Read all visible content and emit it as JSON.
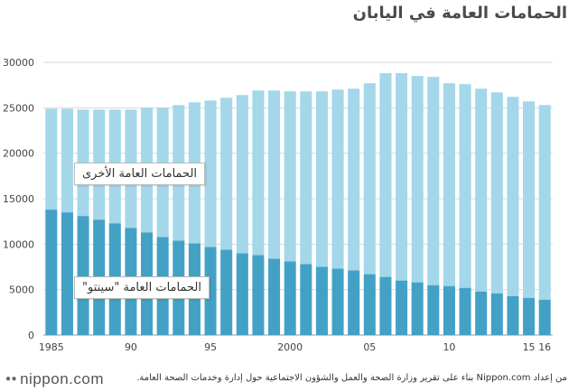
{
  "title": "الحمامات العامة في اليابان",
  "chart_data": {
    "type": "bar",
    "stacked": true,
    "categories": [
      1985,
      1986,
      1987,
      1988,
      1989,
      1990,
      1991,
      1992,
      1993,
      1994,
      1995,
      1996,
      1997,
      1998,
      1999,
      2000,
      2001,
      2002,
      2003,
      2004,
      2005,
      2006,
      2007,
      2008,
      2009,
      2010,
      2011,
      2012,
      2013,
      2014,
      2015,
      2016
    ],
    "series": [
      {
        "name": "الحمامات العامة \"سينتو\"",
        "color": "#44a1c6",
        "values": [
          13800,
          13500,
          13100,
          12700,
          12300,
          11800,
          11300,
          10800,
          10400,
          10100,
          9700,
          9400,
          9000,
          8800,
          8400,
          8100,
          7800,
          7500,
          7300,
          7100,
          6700,
          6400,
          6000,
          5800,
          5500,
          5400,
          5200,
          4800,
          4600,
          4300,
          4100,
          3900
        ]
      },
      {
        "name": "الحمامات العامة الأخرى",
        "color": "#a3d7e9",
        "values": [
          11100,
          11400,
          11700,
          12100,
          12500,
          13000,
          13700,
          14200,
          14900,
          15500,
          16100,
          16700,
          17400,
          18100,
          18500,
          18700,
          19000,
          19300,
          19700,
          20000,
          21000,
          22400,
          22800,
          22700,
          22900,
          22300,
          22400,
          22300,
          22100,
          21900,
          21600,
          21400
        ]
      }
    ],
    "ylim": [
      0,
      30000
    ],
    "yticks": [
      "0",
      "5000",
      "10000",
      "15000",
      "20000",
      "25000",
      "30000"
    ],
    "xticks": [
      {
        "year": 1985,
        "label": "1985"
      },
      {
        "year": 1990,
        "label": "90"
      },
      {
        "year": 1995,
        "label": "95"
      },
      {
        "year": 2000,
        "label": "2000"
      },
      {
        "year": 2005,
        "label": "05"
      },
      {
        "year": 2010,
        "label": "10"
      },
      {
        "year": 2015,
        "label": "15"
      },
      {
        "year": 2016,
        "label": "16"
      }
    ],
    "grid": true,
    "legend": "inline"
  },
  "labels": {
    "other": "الحمامات العامة الأخرى",
    "sento": "الحمامات العامة \"سينتو\""
  },
  "footer": {
    "logo": "nippon.com",
    "source": "من إعداد Nippon.com بناء على تقرير وزارة الصحة والعمل والشؤون الاجتماعية حول إدارة وخدمات الصحة العامة."
  }
}
